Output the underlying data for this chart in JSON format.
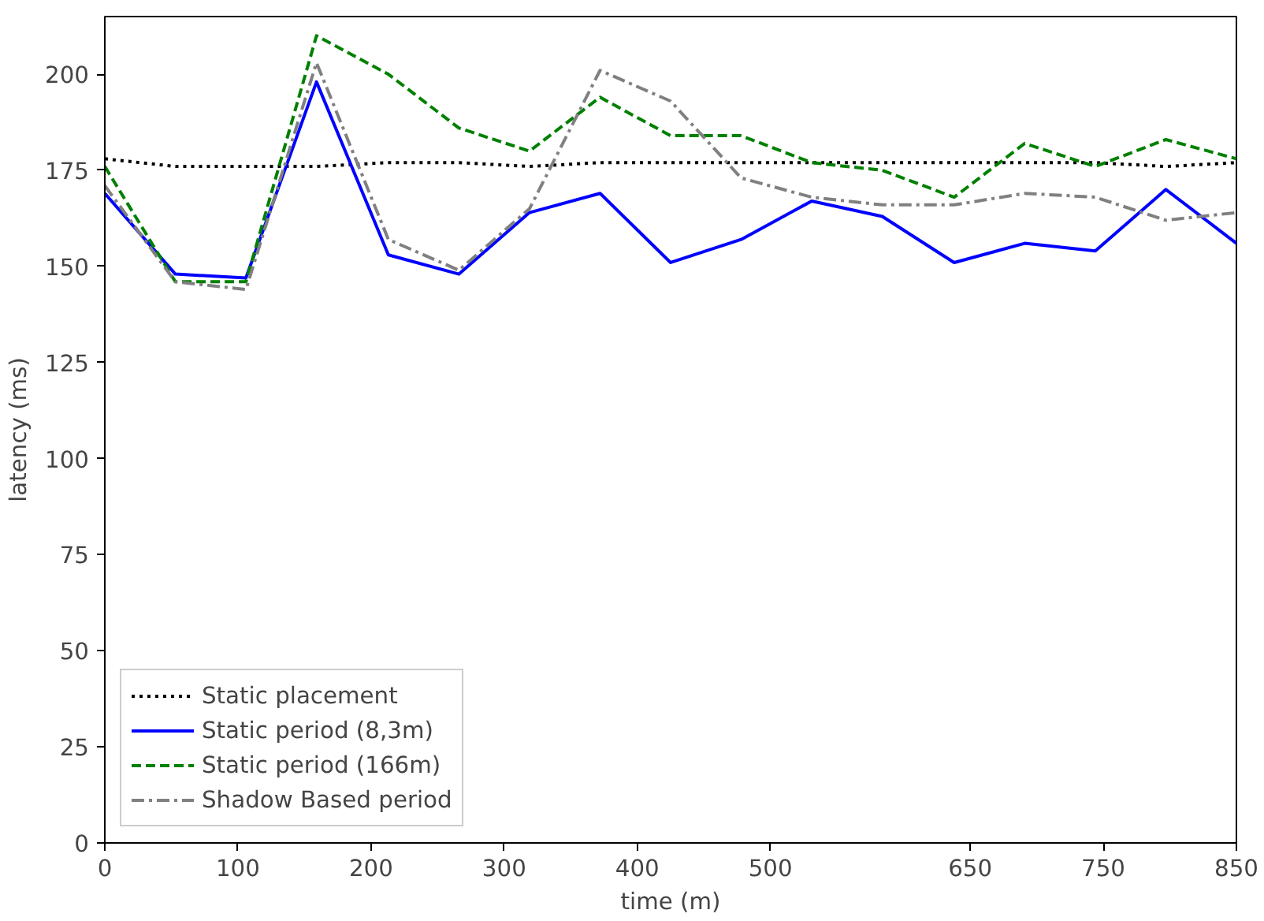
{
  "chart_data": {
    "type": "line",
    "xlabel": "time (m)",
    "ylabel": "latency (ms)",
    "x": [
      0,
      53,
      106,
      159,
      213,
      266,
      319,
      372,
      425,
      478,
      531,
      584,
      638,
      691,
      744,
      797,
      850
    ],
    "xlim": [
      0,
      850
    ],
    "xticks": [
      0,
      100,
      200,
      300,
      400,
      500,
      650,
      750,
      850
    ],
    "ylim": [
      0,
      215
    ],
    "yticks": [
      0,
      25,
      50,
      75,
      100,
      125,
      150,
      175,
      200
    ],
    "grid": false,
    "legend": "bottom left",
    "series": [
      {
        "name": "Static placement",
        "color": "#000000",
        "line_style": "dotted",
        "values": [
          178,
          176,
          176,
          176,
          177,
          177,
          176,
          177,
          177,
          177,
          177,
          177,
          177,
          177,
          177,
          176,
          177
        ]
      },
      {
        "name": "Static period (8,3m)",
        "color": "#0000ff",
        "line_style": "solid",
        "values": [
          169,
          148,
          147,
          198,
          153,
          148,
          164,
          169,
          151,
          157,
          167,
          163,
          151,
          156,
          154,
          170,
          156
        ]
      },
      {
        "name": "Static period (166m)",
        "color": "#008000",
        "line_style": "dashed",
        "values": [
          176,
          146,
          146,
          210,
          200,
          186,
          180,
          194,
          184,
          184,
          177,
          175,
          168,
          182,
          176,
          183,
          178
        ]
      },
      {
        "name": "Shadow Based period",
        "color": "#808080",
        "line_style": "dashdot",
        "values": [
          171,
          146,
          144,
          203,
          157,
          149,
          165,
          201,
          193,
          173,
          168,
          166,
          166,
          169,
          168,
          162,
          164
        ]
      }
    ]
  }
}
